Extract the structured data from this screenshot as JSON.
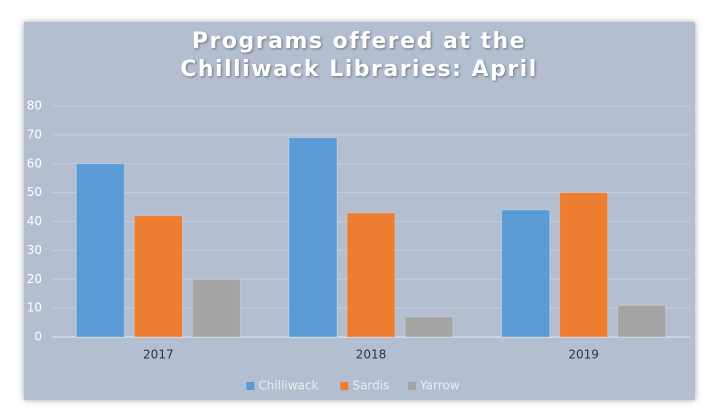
{
  "chart_data": {
    "type": "bar",
    "title": "Programs offered at the Chilliwack Libraries: April",
    "categories": [
      "2017",
      "2018",
      "2019"
    ],
    "series": [
      {
        "name": "Chilliwack",
        "color": "#5b9bd5",
        "values": [
          60,
          69,
          44
        ]
      },
      {
        "name": "Sardis",
        "color": "#ed7d31",
        "values": [
          42,
          43,
          50
        ]
      },
      {
        "name": "Yarrow",
        "color": "#a5a5a5",
        "values": [
          20,
          7,
          11
        ]
      }
    ],
    "ylim": [
      0,
      80
    ],
    "yticks": [
      0,
      10,
      20,
      30,
      40,
      50,
      60,
      70,
      80
    ],
    "grid": true,
    "legend": "bottom"
  }
}
